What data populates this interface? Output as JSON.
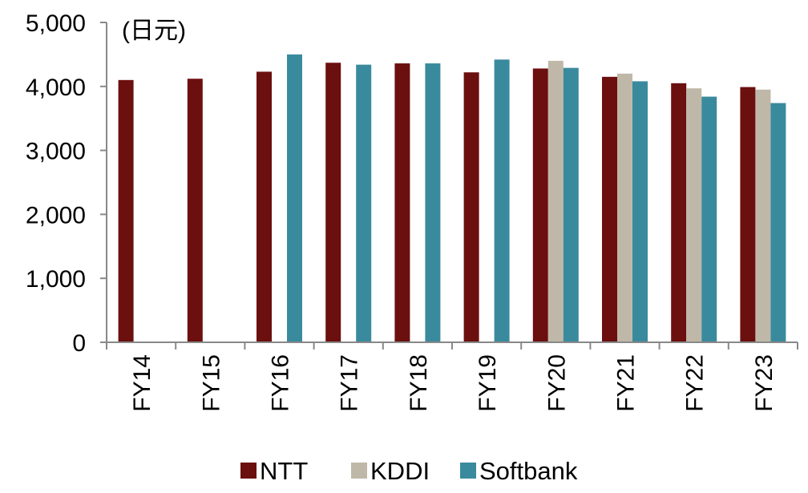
{
  "chart_data": {
    "type": "bar",
    "unit_label": "(日元)",
    "categories": [
      "FY14",
      "FY15",
      "FY16",
      "FY17",
      "FY18",
      "FY19",
      "FY20",
      "FY21",
      "FY22",
      "FY23"
    ],
    "series": [
      {
        "name": "NTT",
        "color": "#6b0f0f",
        "values": [
          4100,
          4120,
          4230,
          4370,
          4360,
          4220,
          4280,
          4150,
          4050,
          3990
        ]
      },
      {
        "name": "KDDI",
        "color": "#bfb8a8",
        "values": [
          null,
          null,
          null,
          null,
          null,
          null,
          4400,
          4200,
          3970,
          3950
        ]
      },
      {
        "name": "Softbank",
        "color": "#3a8a9e",
        "values": [
          null,
          null,
          4500,
          4340,
          4360,
          4420,
          4290,
          4080,
          3840,
          3740
        ]
      }
    ],
    "y_ticks": [
      "0",
      "1,000",
      "2,000",
      "3,000",
      "4,000",
      "5,000"
    ],
    "ylim": [
      0,
      5000
    ],
    "grid": false,
    "legend_position": "bottom"
  }
}
